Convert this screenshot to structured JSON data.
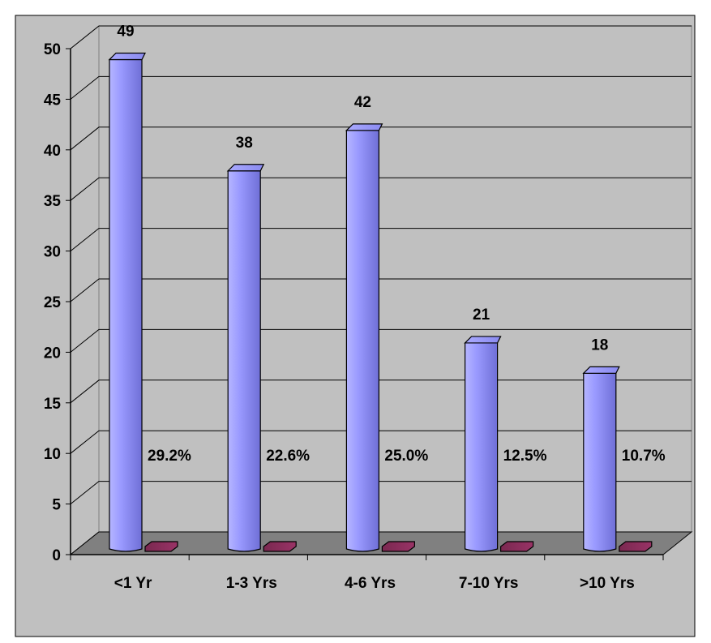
{
  "chart_data": {
    "type": "bar",
    "categories": [
      "<1 Yr",
      "1-3 Yrs",
      "4-6 Yrs",
      "7-10 Yrs",
      ">10 Yrs"
    ],
    "series": [
      {
        "values": [
          49,
          38,
          42,
          21,
          18
        ],
        "color": "#9999ff"
      },
      {
        "values": [
          29.2,
          22.6,
          25.0,
          12.5,
          10.7
        ],
        "color": "#993366"
      }
    ],
    "value_labels": [
      "49",
      "38",
      "42",
      "21",
      "18"
    ],
    "percent_labels": [
      "29.2%",
      "22.6%",
      "25.0%",
      "12.5%",
      "10.7%"
    ],
    "ylim": [
      0,
      50
    ],
    "yticks": [
      0,
      5,
      10,
      15,
      20,
      25,
      30,
      35,
      40,
      45,
      50
    ],
    "grid": true,
    "legend": "none",
    "colors": {
      "background": "#c0c0c0",
      "floor": "#808080",
      "wall": "#c0c0c0"
    }
  }
}
